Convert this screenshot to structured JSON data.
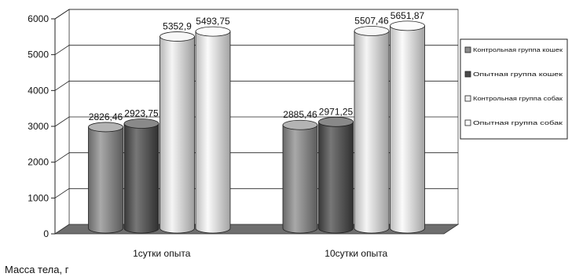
{
  "chart_data": {
    "type": "bar",
    "style": "3d-cylinder",
    "categories": [
      "1сутки опыта",
      "10сутки опыта"
    ],
    "series": [
      {
        "name": "Контрольная группа кошек",
        "values": [
          2826.46,
          2885.46
        ],
        "labels": [
          "2826,46",
          "2885,46"
        ],
        "color": "#8c8c8c"
      },
      {
        "name": "Опытная группа кошек",
        "values": [
          2923.75,
          2971.25
        ],
        "labels": [
          "2923,75",
          "2971,25"
        ],
        "color": "#4a4a4a"
      },
      {
        "name": "Контрольная группа собак",
        "values": [
          5352.9,
          5507.46
        ],
        "labels": [
          "5352,9",
          "5507,46"
        ],
        "color": "#f2f2f2"
      },
      {
        "name": "Опытная группа собак",
        "values": [
          5493.75,
          5651.87
        ],
        "labels": [
          "5493,75",
          "5651,87"
        ],
        "color": "#fafafa"
      }
    ],
    "ylabel": "Масса тела, г",
    "ylim": [
      0,
      6000
    ],
    "yticks": [
      0,
      1000,
      2000,
      3000,
      4000,
      5000,
      6000
    ],
    "grid": true,
    "legend": "right"
  }
}
